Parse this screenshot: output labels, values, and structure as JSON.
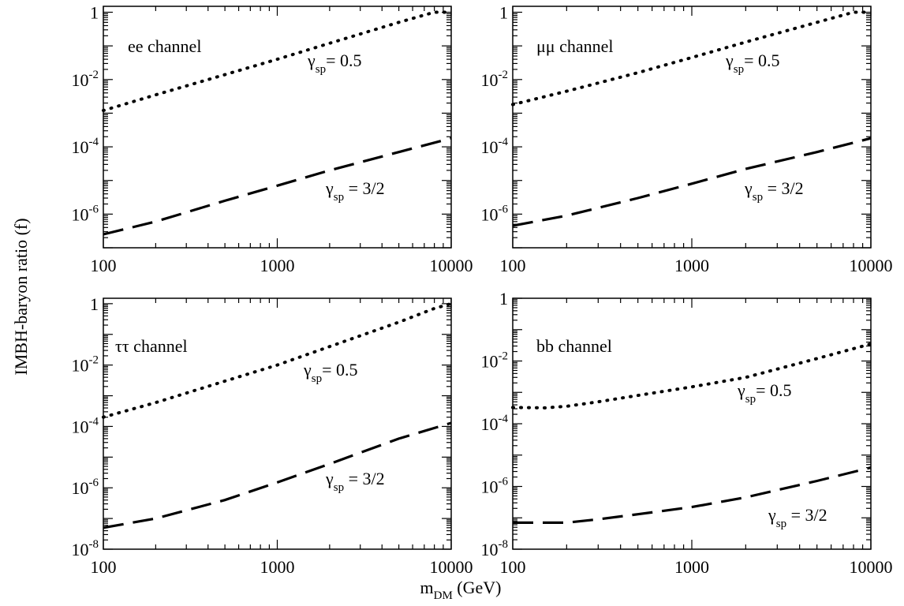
{
  "figure": {
    "ylabel": "IMBH-baryon ratio (f)",
    "xlabel_main": "m",
    "xlabel_sub": "DM",
    "xlabel_unit": " (GeV)"
  },
  "chart_data": [
    {
      "type": "line",
      "panel": "top-left",
      "annotation": "ee channel",
      "xscale": "log",
      "yscale": "log",
      "xlim": [
        100,
        10000
      ],
      "ylim": [
        1e-07,
        1.5
      ],
      "x_ticks": [
        "100",
        "1000",
        "10000"
      ],
      "y_ticks": [
        {
          "base": "1",
          "exp": ""
        },
        {
          "base": "10",
          "exp": "-2"
        },
        {
          "base": "10",
          "exp": "-4"
        },
        {
          "base": "10",
          "exp": "-6"
        }
      ],
      "series": [
        {
          "name": "γsp= 0.5",
          "label_main": "γ",
          "label_sub": "sp",
          "label_rest": "= 0.5",
          "style": "dotted",
          "x": [
            100,
            200,
            500,
            1000,
            2000,
            5000,
            8000,
            10000
          ],
          "y": [
            0.0012,
            0.0035,
            0.014,
            0.04,
            0.12,
            0.5,
            1.0,
            1.0
          ]
        },
        {
          "name": "γsp = 3/2",
          "label_main": "γ",
          "label_sub": "sp",
          "label_rest": " = 3/2",
          "style": "dashed",
          "x": [
            100,
            200,
            500,
            1000,
            2000,
            5000,
            10000
          ],
          "y": [
            2.5e-07,
            6e-07,
            2.5e-06,
            7e-06,
            2e-05,
            7e-05,
            0.00018
          ]
        }
      ]
    },
    {
      "type": "line",
      "panel": "top-right",
      "annotation": "μμ channel",
      "xscale": "log",
      "yscale": "log",
      "xlim": [
        100,
        10000
      ],
      "ylim": [
        1e-07,
        1.5
      ],
      "x_ticks": [
        "100",
        "1000",
        "10000"
      ],
      "y_ticks": [
        {
          "base": "1",
          "exp": ""
        },
        {
          "base": "10",
          "exp": "-2"
        },
        {
          "base": "10",
          "exp": "-4"
        },
        {
          "base": "10",
          "exp": "-6"
        }
      ],
      "series": [
        {
          "name": "γsp= 0.5",
          "label_main": "γ",
          "label_sub": "sp",
          "label_rest": "= 0.5",
          "style": "dotted",
          "x": [
            100,
            200,
            500,
            1000,
            2000,
            5000,
            8000,
            10000
          ],
          "y": [
            0.0018,
            0.0045,
            0.016,
            0.045,
            0.13,
            0.5,
            1.0,
            1.0
          ]
        },
        {
          "name": "γsp = 3/2",
          "label_main": "γ",
          "label_sub": "sp",
          "label_rest": " = 3/2",
          "style": "dashed",
          "x": [
            100,
            200,
            500,
            1000,
            2000,
            5000,
            10000
          ],
          "y": [
            4.5e-07,
            9e-07,
            3e-06,
            8e-06,
            2.2e-05,
            7e-05,
            0.00018
          ]
        }
      ]
    },
    {
      "type": "line",
      "panel": "bottom-left",
      "annotation": "ττ channel",
      "xscale": "log",
      "yscale": "log",
      "xlim": [
        100,
        10000
      ],
      "ylim": [
        1e-08,
        1.5
      ],
      "x_ticks": [
        "100",
        "1000",
        "10000"
      ],
      "y_ticks": [
        {
          "base": "1",
          "exp": ""
        },
        {
          "base": "10",
          "exp": "-2"
        },
        {
          "base": "10",
          "exp": "-4"
        },
        {
          "base": "10",
          "exp": "-6"
        },
        {
          "base": "10",
          "exp": "-8"
        }
      ],
      "series": [
        {
          "name": "γsp= 0.5",
          "label_main": "γ",
          "label_sub": "sp",
          "label_rest": "= 0.5",
          "style": "dotted",
          "x": [
            100,
            200,
            500,
            1000,
            2000,
            5000,
            8000,
            10000
          ],
          "y": [
            0.0002,
            0.0006,
            0.003,
            0.01,
            0.04,
            0.25,
            0.7,
            1.0
          ]
        },
        {
          "name": "γsp = 3/2",
          "label_main": "γ",
          "label_sub": "sp",
          "label_rest": " = 3/2",
          "style": "dashed",
          "x": [
            100,
            200,
            500,
            1000,
            2000,
            5000,
            10000
          ],
          "y": [
            5e-08,
            1e-07,
            4e-07,
            1.5e-06,
            6e-06,
            4e-05,
            0.00013
          ]
        }
      ]
    },
    {
      "type": "line",
      "panel": "bottom-right",
      "annotation": "bb channel",
      "xscale": "log",
      "yscale": "log",
      "xlim": [
        100,
        10000
      ],
      "ylim": [
        1e-08,
        1
      ],
      "x_ticks": [
        "100",
        "1000",
        "10000"
      ],
      "y_ticks": [
        {
          "base": "1",
          "exp": ""
        },
        {
          "base": "10",
          "exp": "-2"
        },
        {
          "base": "10",
          "exp": "-4"
        },
        {
          "base": "10",
          "exp": "-6"
        },
        {
          "base": "10",
          "exp": "-8"
        }
      ],
      "series": [
        {
          "name": "γsp= 0.5",
          "label_main": "γ",
          "label_sub": "sp",
          "label_rest": "= 0.5",
          "style": "dotted",
          "x": [
            100,
            150,
            200,
            300,
            500,
            1000,
            2000,
            5000,
            10000
          ],
          "y": [
            0.00033,
            0.00032,
            0.00036,
            0.0005,
            0.0008,
            0.0015,
            0.003,
            0.012,
            0.035
          ]
        },
        {
          "name": "γsp = 3/2",
          "label_main": "γ",
          "label_sub": "sp",
          "label_rest": " = 3/2",
          "style": "dashed",
          "x": [
            100,
            200,
            300,
            500,
            1000,
            2000,
            5000,
            10000
          ],
          "y": [
            7e-08,
            7e-08,
            9e-08,
            1.3e-07,
            2.2e-07,
            4.5e-07,
            1.5e-06,
            4e-06
          ]
        }
      ]
    }
  ]
}
